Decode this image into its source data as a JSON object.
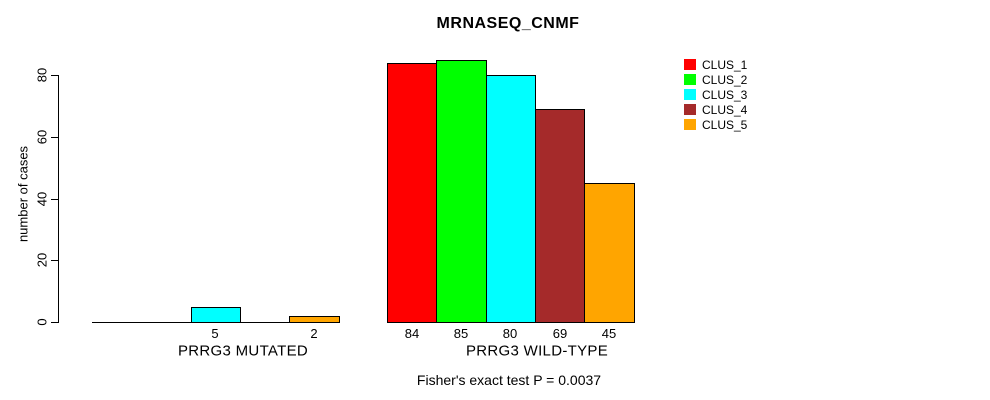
{
  "title": "MRNASEQ_CNMF",
  "subtitle": "Fisher's exact test P = 0.0037",
  "chart_data": {
    "type": "bar",
    "title": "MRNASEQ_CNMF",
    "xlabel": "",
    "ylabel": "number of cases",
    "ylim": [
      0,
      80
    ],
    "yticks": [
      0,
      20,
      40,
      60,
      80
    ],
    "grid": false,
    "categories": [
      "PRRG3 MUTATED",
      "PRRG3 WILD-TYPE"
    ],
    "series": [
      {
        "name": "CLUS_1",
        "color": "#FF0000",
        "values": [
          0,
          84
        ]
      },
      {
        "name": "CLUS_2",
        "color": "#00FF00",
        "values": [
          0,
          85
        ]
      },
      {
        "name": "CLUS_3",
        "color": "#00FFFF",
        "values": [
          5,
          80
        ]
      },
      {
        "name": "CLUS_4",
        "color": "#A52A2A",
        "values": [
          0,
          69
        ]
      },
      {
        "name": "CLUS_5",
        "color": "#FFA500",
        "values": [
          2,
          45
        ]
      }
    ],
    "bar_value_labels": [
      [
        "",
        "",
        "5",
        "",
        "2"
      ],
      [
        "84",
        "85",
        "80",
        "69",
        "45"
      ]
    ],
    "legend": {
      "position": "right",
      "entries": [
        "CLUS_1",
        "CLUS_2",
        "CLUS_3",
        "CLUS_4",
        "CLUS_5"
      ]
    },
    "annotation": "Fisher's exact test P = 0.0037"
  }
}
